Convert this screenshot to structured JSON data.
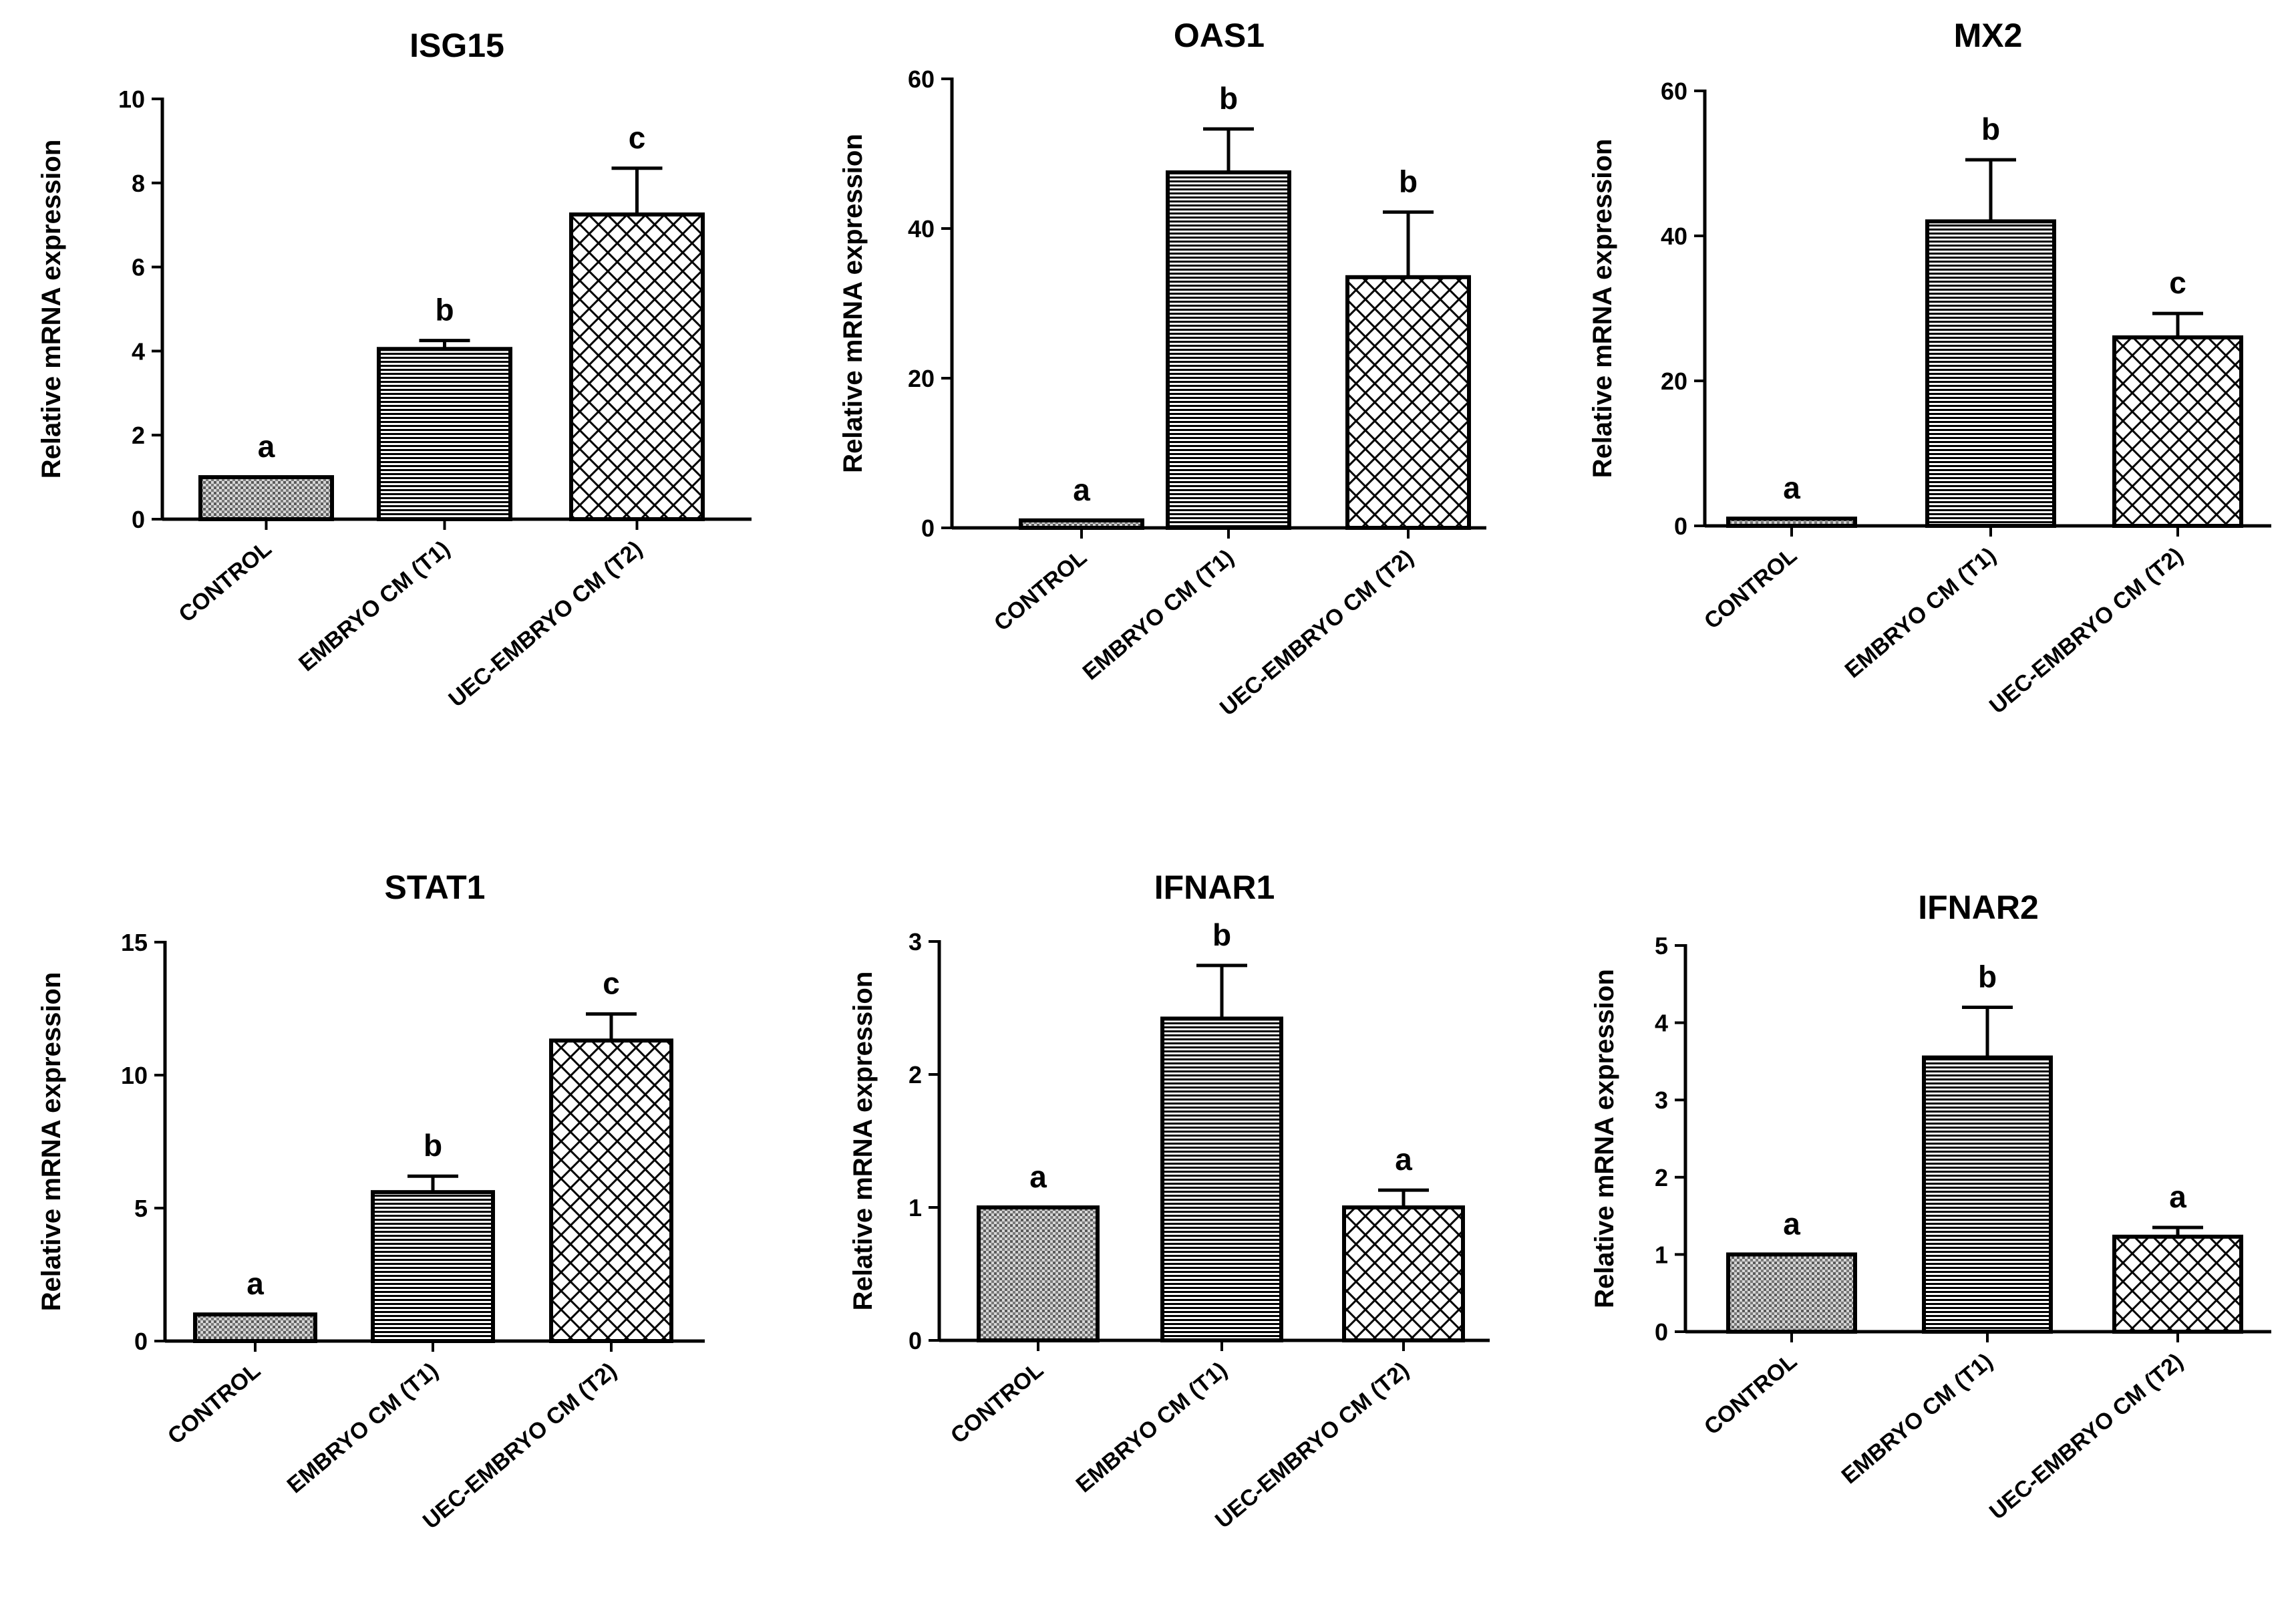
{
  "chart_data": [
    {
      "type": "bar",
      "title": "ISG15",
      "ylabel": "Relative mRNA expression",
      "xlabel": "",
      "categories": [
        "CONTROL",
        "EMBRYO CM (T1)",
        "UEC-EMBRYO CM (T2)"
      ],
      "values": [
        1.0,
        4.05,
        7.25
      ],
      "errors": [
        0.0,
        0.2,
        1.1
      ],
      "significance": [
        "a",
        "b",
        "c"
      ],
      "ylim": [
        0,
        10
      ],
      "yticks": [
        "0",
        "2",
        "4",
        "6",
        "8",
        "10"
      ],
      "grid": false,
      "patterns": [
        "dots",
        "hlines",
        "crosshatch"
      ]
    },
    {
      "type": "bar",
      "title": "OAS1",
      "ylabel": "Relative mRNA expression",
      "xlabel": "",
      "categories": [
        "CONTROL",
        "EMBRYO CM (T1)",
        "UEC-EMBRYO CM (T2)"
      ],
      "values": [
        1.0,
        47.5,
        33.5
      ],
      "errors": [
        0.0,
        5.8,
        8.7
      ],
      "significance": [
        "a",
        "b",
        "b"
      ],
      "ylim": [
        0,
        60
      ],
      "yticks": [
        "0",
        "20",
        "40",
        "60"
      ],
      "grid": false,
      "patterns": [
        "dots",
        "hlines",
        "crosshatch"
      ]
    },
    {
      "type": "bar",
      "title": "MX2",
      "ylabel": "Relative mRNA expression",
      "xlabel": "",
      "categories": [
        "CONTROL",
        "EMBRYO CM (T1)",
        "UEC-EMBRYO CM (T2)"
      ],
      "values": [
        1.0,
        42.0,
        26.0
      ],
      "errors": [
        0.0,
        8.5,
        3.3
      ],
      "significance": [
        "a",
        "b",
        "c"
      ],
      "ylim": [
        0,
        60
      ],
      "yticks": [
        "0",
        "20",
        "40",
        "60"
      ],
      "grid": false,
      "patterns": [
        "dots",
        "hlines",
        "crosshatch"
      ]
    },
    {
      "type": "bar",
      "title": "STAT1",
      "ylabel": "Relative mRNA expression",
      "xlabel": "",
      "categories": [
        "CONTROL",
        "EMBRYO CM (T1)",
        "UEC-EMBRYO CM (T2)"
      ],
      "values": [
        1.0,
        5.6,
        11.3
      ],
      "errors": [
        0.0,
        0.6,
        1.0
      ],
      "significance": [
        "a",
        "b",
        "c"
      ],
      "ylim": [
        0,
        15
      ],
      "yticks": [
        "0",
        "5",
        "10",
        "15"
      ],
      "grid": false,
      "patterns": [
        "dots",
        "hlines",
        "crosshatch"
      ]
    },
    {
      "type": "bar",
      "title": "IFNAR1",
      "ylabel": "Relative mRNA expression",
      "xlabel": "",
      "categories": [
        "CONTROL",
        "EMBRYO CM (T1)",
        "UEC-EMBRYO CM (T2)"
      ],
      "values": [
        1.0,
        2.42,
        1.0
      ],
      "errors": [
        0.0,
        0.4,
        0.13
      ],
      "significance": [
        "a",
        "b",
        "a"
      ],
      "ylim": [
        0,
        3
      ],
      "yticks": [
        "0",
        "1",
        "2",
        "3"
      ],
      "grid": false,
      "patterns": [
        "dots",
        "hlines",
        "crosshatch"
      ]
    },
    {
      "type": "bar",
      "title": "IFNAR2",
      "ylabel": "Relative mRNA expression",
      "xlabel": "",
      "categories": [
        "CONTROL",
        "EMBRYO CM (T1)",
        "UEC-EMBRYO CM (T2)"
      ],
      "values": [
        1.0,
        3.55,
        1.23
      ],
      "errors": [
        0.0,
        0.65,
        0.12
      ],
      "significance": [
        "a",
        "b",
        "a"
      ],
      "ylim": [
        0,
        5
      ],
      "yticks": [
        "0",
        "1",
        "2",
        "3",
        "4",
        "5"
      ],
      "grid": false,
      "patterns": [
        "dots",
        "hlines",
        "crosshatch"
      ]
    }
  ]
}
